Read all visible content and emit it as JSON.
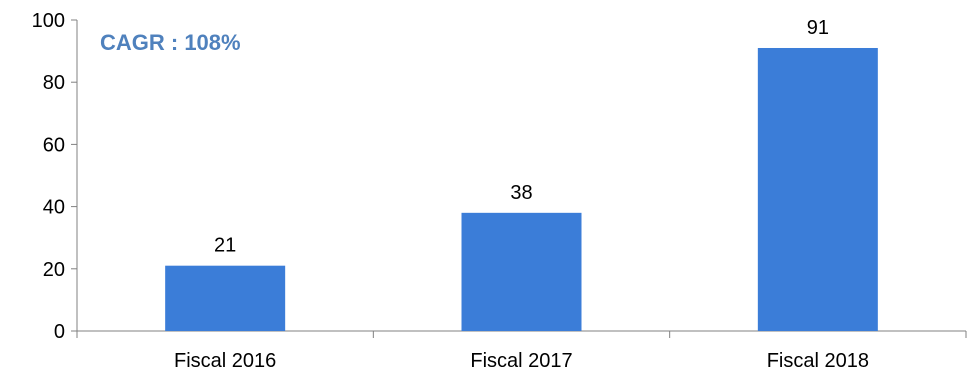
{
  "chart_data": {
    "type": "bar",
    "categories": [
      "Fiscal 2016",
      "Fiscal 2017",
      "Fiscal 2018"
    ],
    "values": [
      21,
      38,
      91
    ],
    "data_labels": [
      "21",
      "38",
      "91"
    ],
    "ylim": [
      0,
      100
    ],
    "yticks": [
      0,
      20,
      40,
      60,
      80,
      100
    ],
    "ytick_labels": [
      "0",
      "20",
      "40",
      "60",
      "80",
      "100"
    ],
    "grid": false,
    "legend": "none",
    "annotation": "CAGR : 108%",
    "colors": {
      "bar": "#3B7DD8",
      "annotation": "#4F81BD",
      "axis": "#808080",
      "text": "#000000"
    }
  }
}
